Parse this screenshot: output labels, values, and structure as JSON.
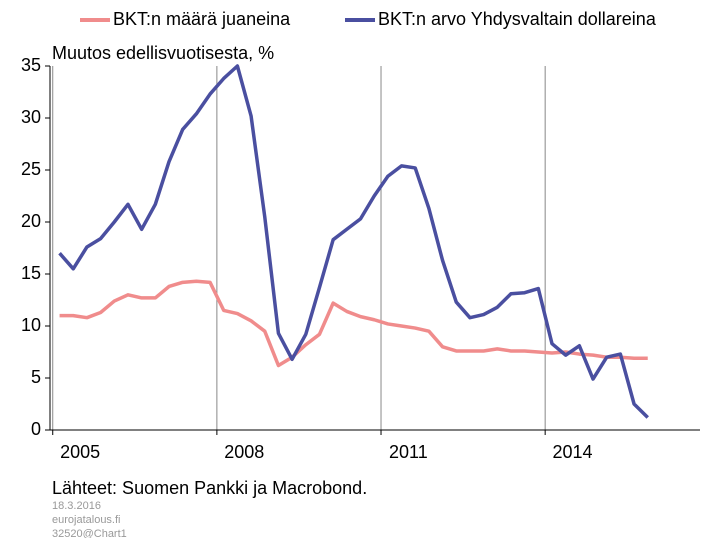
{
  "chart_data": {
    "type": "line",
    "subtitle": "Muutos edellisvuotisesta, %",
    "source": "Lähteet: Suomen Pankki ja Macrobond.",
    "footer": [
      "18.3.2016",
      "eurojatalous.fi",
      "32520@Chart1"
    ],
    "x": [
      2005.125,
      2005.375,
      2005.625,
      2005.875,
      2006.125,
      2006.375,
      2006.625,
      2006.875,
      2007.125,
      2007.375,
      2007.625,
      2007.875,
      2008.125,
      2008.375,
      2008.625,
      2008.875,
      2009.125,
      2009.375,
      2009.625,
      2009.875,
      2010.125,
      2010.375,
      2010.625,
      2010.875,
      2011.125,
      2011.375,
      2011.625,
      2011.875,
      2012.125,
      2012.375,
      2012.625,
      2012.875,
      2013.125,
      2013.375,
      2013.625,
      2013.875,
      2014.125,
      2014.375,
      2014.625,
      2014.875,
      2015.125,
      2015.375,
      2015.625,
      2015.875
    ],
    "series": [
      {
        "name": "BKT:n määrä juaneina",
        "color": "#f08c8c",
        "values": [
          11.0,
          11.0,
          10.8,
          11.3,
          12.4,
          13.0,
          12.7,
          12.7,
          13.8,
          14.2,
          14.3,
          14.2,
          11.5,
          11.2,
          10.5,
          9.5,
          6.2,
          7.0,
          8.2,
          9.2,
          12.2,
          11.4,
          10.9,
          10.6,
          10.2,
          10.0,
          9.8,
          9.5,
          8.0,
          7.6,
          7.6,
          7.6,
          7.8,
          7.6,
          7.6,
          7.5,
          7.4,
          7.5,
          7.3,
          7.2,
          7.0,
          7.0,
          6.9,
          6.9
        ]
      },
      {
        "name": "BKT:n arvo Yhdysvaltain dollareina",
        "color": "#4a4fa0",
        "values": [
          17.0,
          15.5,
          17.6,
          18.4,
          20.0,
          21.7,
          19.3,
          21.7,
          25.8,
          28.9,
          30.4,
          32.3,
          33.8,
          35.0,
          30.2,
          20.5,
          9.3,
          6.8,
          9.2,
          13.7,
          18.3,
          19.3,
          20.3,
          22.5,
          24.4,
          25.4,
          25.2,
          21.3,
          16.3,
          12.3,
          10.8,
          11.1,
          11.8,
          13.1,
          13.2,
          13.6,
          8.3,
          7.2,
          8.1,
          4.9,
          7.0,
          7.3,
          2.5,
          1.2
        ]
      }
    ],
    "xlim": [
      2004.95,
      2016.83
    ],
    "xticks": [
      2005,
      2008,
      2011,
      2014
    ],
    "ylim": [
      0,
      35
    ],
    "yticks": [
      0,
      5,
      10,
      15,
      20,
      25,
      30,
      35
    ],
    "grid": true,
    "legend": "top"
  }
}
